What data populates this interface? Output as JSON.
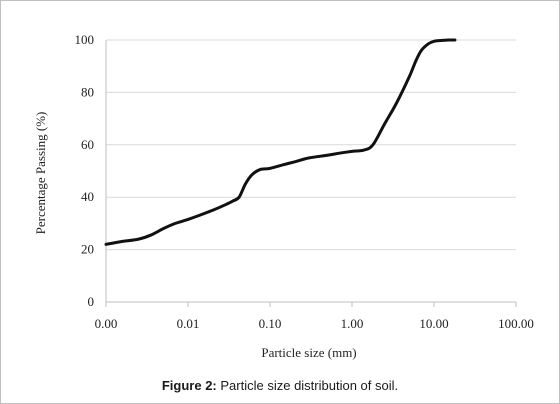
{
  "chart_data": {
    "type": "line",
    "x_scale": "log",
    "xlabel": "Particle size (mm)",
    "ylabel": "Percentage  Passing (%)",
    "xlim": [
      0.001,
      100
    ],
    "ylim": [
      0,
      100
    ],
    "x_tick_labels": [
      "0.00",
      "0.01",
      "0.10",
      "1.00",
      "10.00",
      "100.00"
    ],
    "y_tick_labels": [
      "0",
      "20",
      "40",
      "60",
      "80",
      "100"
    ],
    "grid": "horizontal",
    "legend": "none",
    "series": [
      {
        "color": "#111111",
        "x": [
          0.001,
          0.0015,
          0.0025,
          0.0035,
          0.005,
          0.007,
          0.01,
          0.015,
          0.02,
          0.028,
          0.035,
          0.042,
          0.05,
          0.06,
          0.075,
          0.1,
          0.15,
          0.2,
          0.3,
          0.5,
          0.7,
          1.0,
          1.4,
          1.8,
          2.5,
          3.5,
          5.0,
          6.0,
          7.0,
          8.5,
          10,
          12,
          15,
          18
        ],
        "y": [
          22,
          23,
          24,
          25.5,
          28,
          30,
          31.5,
          33.5,
          35,
          37,
          38.5,
          40,
          45,
          48.5,
          50.5,
          51,
          52.5,
          53.5,
          55,
          56,
          56.8,
          57.5,
          58,
          60,
          68,
          76,
          86,
          92,
          96,
          98.5,
          99.5,
          99.8,
          100,
          100
        ]
      }
    ]
  },
  "caption": {
    "label": "Figure 2:",
    "text": " Particle size distribution of soil."
  }
}
